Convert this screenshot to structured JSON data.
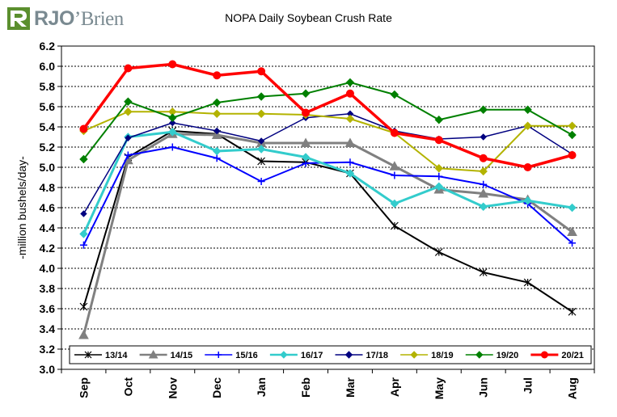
{
  "logo": {
    "text_a": "RJO",
    "text_b": "Brien",
    "apostrophe": "’"
  },
  "chart_data": {
    "type": "line",
    "title": "NOPA Daily Soybean Crush Rate",
    "ylabel": "-million bushels/day-",
    "xlabel": "",
    "ylim": [
      3.0,
      6.2
    ],
    "yticks": [
      "3.0",
      "3.2",
      "3.4",
      "3.6",
      "3.8",
      "4.0",
      "4.2",
      "4.4",
      "4.6",
      "4.8",
      "5.0",
      "5.2",
      "5.4",
      "5.6",
      "5.8",
      "6.0",
      "6.2"
    ],
    "categories": [
      "Sep",
      "Oct",
      "Nov",
      "Dec",
      "Jan",
      "Feb",
      "Mar",
      "Apr",
      "May",
      "Jun",
      "Jul",
      "Aug"
    ],
    "grid": true,
    "legend_position": "bottom",
    "series": [
      {
        "name": "13/14",
        "color": "#000000",
        "marker": "star",
        "width": 2,
        "values": [
          3.62,
          5.1,
          5.36,
          5.33,
          5.06,
          5.05,
          4.94,
          4.42,
          4.16,
          3.96,
          3.86,
          3.57
        ]
      },
      {
        "name": "14/15",
        "color": "#808080",
        "marker": "triangle",
        "width": 3,
        "values": [
          3.34,
          5.07,
          5.33,
          5.32,
          5.24,
          5.24,
          5.24,
          5.01,
          4.78,
          4.74,
          4.68,
          4.36
        ]
      },
      {
        "name": "15/16",
        "color": "#0000ff",
        "marker": "plus",
        "width": 2,
        "values": [
          4.23,
          5.12,
          5.2,
          5.09,
          4.86,
          5.04,
          5.05,
          4.92,
          4.91,
          4.83,
          4.64,
          4.25
        ]
      },
      {
        "name": "16/17",
        "color": "#33cccc",
        "marker": "diamond",
        "width": 3,
        "values": [
          4.34,
          5.3,
          5.35,
          5.16,
          5.18,
          5.1,
          4.94,
          4.64,
          4.81,
          4.61,
          4.67,
          4.6
        ]
      },
      {
        "name": "17/18",
        "color": "#000080",
        "marker": "diamond",
        "width": 1.5,
        "values": [
          4.54,
          5.29,
          5.44,
          5.36,
          5.26,
          5.49,
          5.53,
          5.36,
          5.28,
          5.3,
          5.41,
          5.13
        ]
      },
      {
        "name": "18/19",
        "color": "#b3b300",
        "marker": "diamond",
        "width": 2,
        "values": [
          5.36,
          5.55,
          5.55,
          5.53,
          5.53,
          5.52,
          5.48,
          5.34,
          4.99,
          4.96,
          5.41,
          5.41
        ]
      },
      {
        "name": "19/20",
        "color": "#008000",
        "marker": "diamond",
        "width": 2,
        "values": [
          5.08,
          5.65,
          5.49,
          5.64,
          5.7,
          5.73,
          5.84,
          5.72,
          5.47,
          5.57,
          5.57,
          5.32
        ]
      },
      {
        "name": "20/21",
        "color": "#ff0000",
        "marker": "circle",
        "width": 3.5,
        "values": [
          5.38,
          5.98,
          6.02,
          5.91,
          5.95,
          5.54,
          5.73,
          5.34,
          5.27,
          5.09,
          5.0,
          5.12
        ]
      }
    ]
  }
}
